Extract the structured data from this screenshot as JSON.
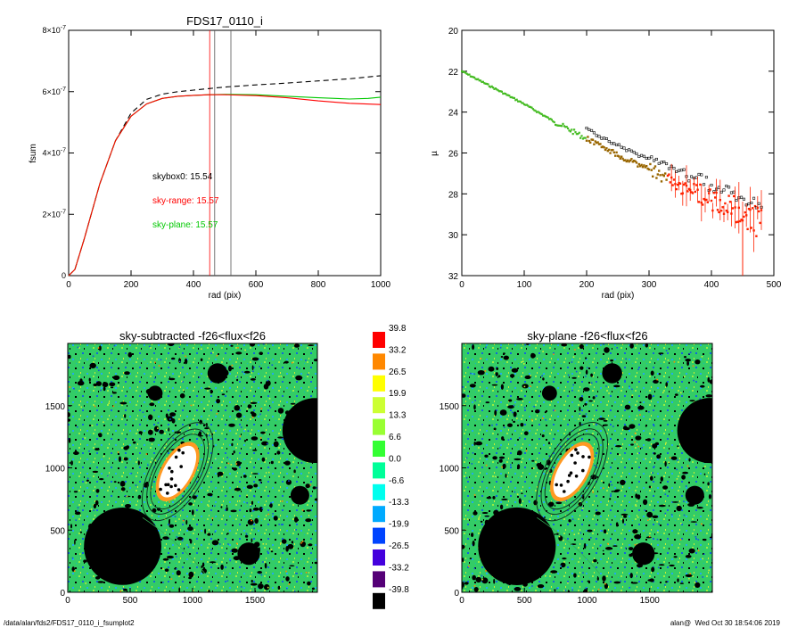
{
  "footer": {
    "path": "/data/alan/fds2/FDS17_0110_i_fsumplot2",
    "user": "alan@",
    "timestamp": "Wed Oct 30 18:54:06 2019"
  },
  "chart_data": [
    {
      "type": "line",
      "title": "FDS17_0110_i",
      "xlabel": "rad (pix)",
      "ylabel": "fsum",
      "xlim": [
        0,
        1000
      ],
      "ylim": [
        0,
        8e-07
      ],
      "xticks": [
        "0",
        "200",
        "400",
        "600",
        "800",
        "1000"
      ],
      "yticks": [
        {
          "mant": "0",
          "exp": ""
        },
        {
          "mant": "2×10",
          "exp": "-7"
        },
        {
          "mant": "4×10",
          "exp": "-7"
        },
        {
          "mant": "6×10",
          "exp": "-7"
        },
        {
          "mant": "8×10",
          "exp": "-7"
        }
      ],
      "annotations": [
        {
          "text": "skybox0: 15.54",
          "color": "#000000"
        },
        {
          "text": "sky-range: 15.57",
          "color": "#ff0000"
        },
        {
          "text": "sky-plane: 15.57",
          "color": "#00c800"
        }
      ],
      "vlines": [
        {
          "x": 452,
          "color": "#ff0000"
        },
        {
          "x": 468,
          "color": "#555555"
        },
        {
          "x": 520,
          "color": "#555555"
        }
      ],
      "series": [
        {
          "color": "#000000",
          "style": "dashed",
          "x": [
            0,
            20,
            50,
            100,
            150,
            200,
            250,
            300,
            350,
            400,
            450,
            500,
            600,
            700,
            800,
            900,
            1000
          ],
          "y": [
            0,
            2e-08,
            1.2e-07,
            3e-07,
            4.4e-07,
            5.3e-07,
            5.75e-07,
            5.92e-07,
            6e-07,
            6.05e-07,
            6.1e-07,
            6.15e-07,
            6.22e-07,
            6.28e-07,
            6.35e-07,
            6.42e-07,
            6.52e-07
          ]
        },
        {
          "color": "#00c800",
          "style": "solid",
          "x": [
            0,
            20,
            50,
            100,
            150,
            200,
            250,
            300,
            350,
            400,
            450,
            500,
            600,
            700,
            800,
            900,
            960,
            1000
          ],
          "y": [
            0,
            2e-08,
            1.2e-07,
            3e-07,
            4.4e-07,
            5.2e-07,
            5.6e-07,
            5.78e-07,
            5.85e-07,
            5.88e-07,
            5.9e-07,
            5.91e-07,
            5.9e-07,
            5.85e-07,
            5.8e-07,
            5.76e-07,
            5.78e-07,
            5.82e-07
          ]
        },
        {
          "color": "#ff0000",
          "style": "solid",
          "x": [
            0,
            20,
            50,
            100,
            150,
            200,
            250,
            300,
            350,
            400,
            450,
            500,
            600,
            700,
            800,
            900,
            1000
          ],
          "y": [
            0,
            2e-08,
            1.2e-07,
            3e-07,
            4.4e-07,
            5.2e-07,
            5.6e-07,
            5.78e-07,
            5.85e-07,
            5.88e-07,
            5.9e-07,
            5.9e-07,
            5.87e-07,
            5.8e-07,
            5.7e-07,
            5.62e-07,
            5.58e-07
          ]
        }
      ]
    },
    {
      "type": "scatter",
      "title": "",
      "xlabel": "rad (pix)",
      "ylabel": "µ",
      "xlim": [
        0,
        500
      ],
      "ylim": [
        32,
        20
      ],
      "xticks": [
        "0",
        "100",
        "200",
        "300",
        "400",
        "500"
      ],
      "yticks": [
        "20",
        "22",
        "24",
        "26",
        "28",
        "30",
        "32"
      ],
      "trend": [
        {
          "x": 0,
          "y": 22.0
        },
        {
          "x": 50,
          "y": 22.8
        },
        {
          "x": 100,
          "y": 23.6
        },
        {
          "x": 150,
          "y": 24.5
        },
        {
          "x": 200,
          "y": 25.3
        },
        {
          "x": 250,
          "y": 26.1
        },
        {
          "x": 300,
          "y": 26.8
        },
        {
          "x": 350,
          "y": 27.6
        },
        {
          "x": 400,
          "y": 28.3
        },
        {
          "x": 450,
          "y": 28.9
        },
        {
          "x": 480,
          "y": 29.5
        }
      ],
      "series_colors": {
        "green": "#44bb22",
        "red": "#ff2200",
        "black": "#000000"
      }
    },
    {
      "type": "heatmap",
      "title": "sky-subtracted -f26<flux<f26",
      "xlim": [
        0,
        2000
      ],
      "ylim": [
        0,
        2000
      ],
      "xticks": [
        "0",
        "500",
        "1000",
        "1500"
      ],
      "yticks": [
        "0",
        "500",
        "1000",
        "1500"
      ],
      "masks": [
        {
          "cx": 440,
          "cy": 370,
          "r": 310
        },
        {
          "cx": 1980,
          "cy": 1300,
          "r": 260
        },
        {
          "cx": 1200,
          "cy": 1760,
          "r": 80
        },
        {
          "cx": 700,
          "cy": 1600,
          "r": 60
        },
        {
          "cx": 1450,
          "cy": 310,
          "r": 90
        },
        {
          "cx": 1860,
          "cy": 780,
          "r": 75
        }
      ],
      "galaxy": {
        "cx": 880,
        "cy": 970,
        "a": 230,
        "b": 110,
        "angle": -60
      }
    },
    {
      "type": "heatmap",
      "title": "sky-plane -f26<flux<f26",
      "xlim": [
        0,
        2000
      ],
      "ylim": [
        0,
        2000
      ],
      "xticks": [
        "0",
        "500",
        "1000",
        "1500"
      ],
      "yticks": [
        "0",
        "500",
        "1000",
        "1500"
      ],
      "masks": [
        {
          "cx": 440,
          "cy": 370,
          "r": 310
        },
        {
          "cx": 1980,
          "cy": 1300,
          "r": 260
        },
        {
          "cx": 1200,
          "cy": 1760,
          "r": 80
        },
        {
          "cx": 700,
          "cy": 1600,
          "r": 60
        },
        {
          "cx": 1450,
          "cy": 310,
          "r": 90
        },
        {
          "cx": 1860,
          "cy": 780,
          "r": 75
        }
      ],
      "galaxy": {
        "cx": 880,
        "cy": 970,
        "a": 230,
        "b": 110,
        "angle": -60
      }
    }
  ],
  "colorbar": {
    "labels": [
      "39.8",
      "33.2",
      "26.5",
      "19.9",
      "13.3",
      "6.6",
      "0.0",
      "-6.6",
      "-13.3",
      "-19.9",
      "-26.5",
      "-33.2",
      "-39.8"
    ],
    "colors": [
      "#ff0000",
      "#ff8800",
      "#ffff00",
      "#ccff33",
      "#99ff33",
      "#33ff33",
      "#00ff99",
      "#00ffee",
      "#00aaff",
      "#0044ff",
      "#4400dd",
      "#550077",
      "#000000"
    ]
  }
}
